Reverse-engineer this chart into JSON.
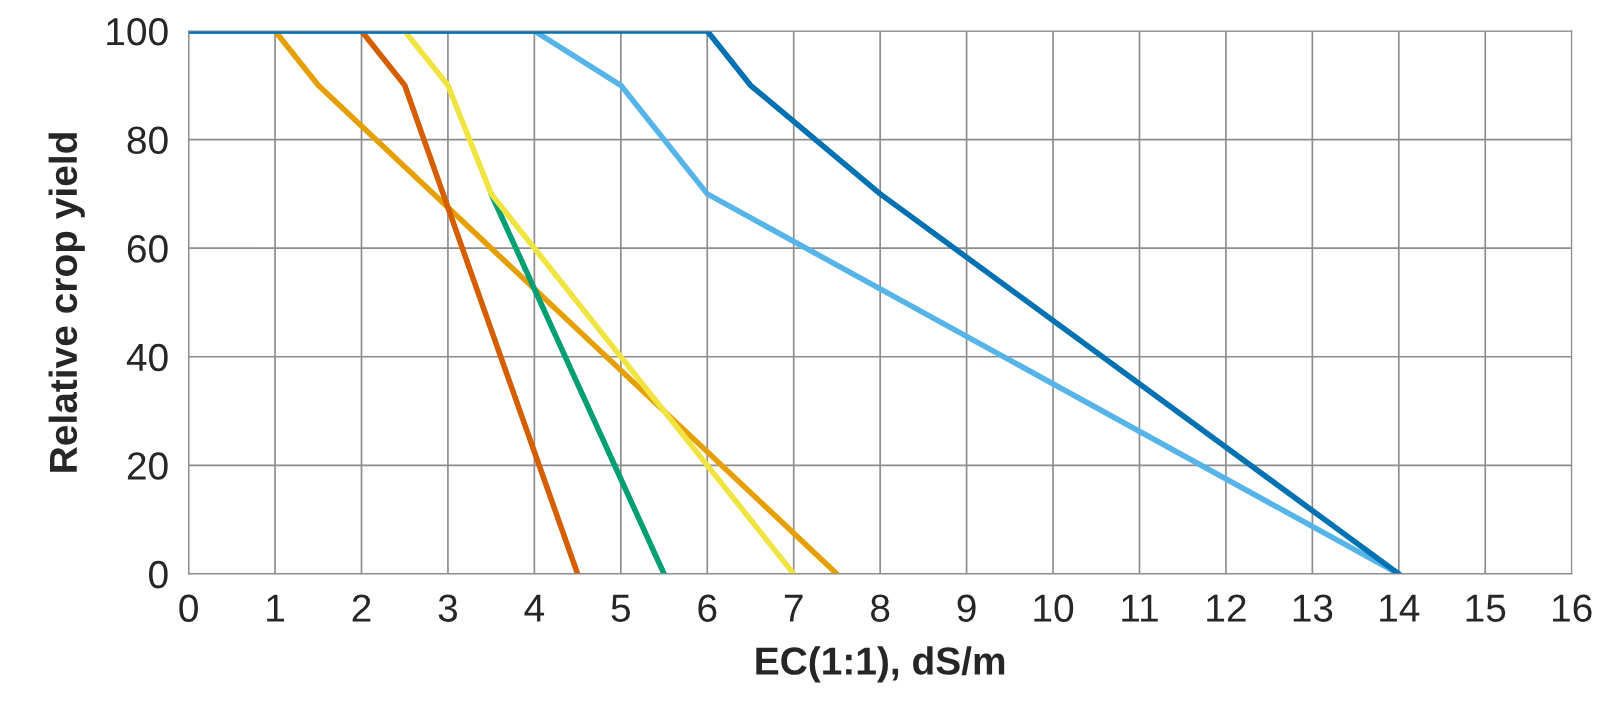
{
  "chart_data": {
    "type": "line",
    "xlabel": "EC(1:1), dS/m",
    "ylabel": "Relative crop yield",
    "xlim": [
      0,
      16
    ],
    "xticks": [
      0,
      1,
      2,
      3,
      4,
      5,
      6,
      7,
      8,
      9,
      10,
      11,
      12,
      13,
      14,
      15,
      16
    ],
    "ylim": [
      0,
      100
    ],
    "yticks": [
      0,
      20,
      40,
      60,
      80,
      100
    ],
    "grid": true,
    "legend": false,
    "marker": "none",
    "line_style": "solid",
    "series": [
      {
        "color": "#e69f00",
        "x": [
          1,
          1.5,
          2.5,
          7.5
        ],
        "values": [
          100,
          90,
          75,
          0
        ]
      },
      {
        "color": "#d55e00",
        "x": [
          2,
          2.5,
          4.5
        ],
        "values": [
          100,
          90,
          0
        ]
      },
      {
        "color": "#009e73",
        "x": [
          3.5,
          5.5
        ],
        "values": [
          70,
          0
        ]
      },
      {
        "color": "#f0e442",
        "x": [
          2.5,
          3,
          3.5,
          4,
          7
        ],
        "values": [
          100,
          90,
          70,
          60,
          0
        ]
      },
      {
        "color": "#56b4e9",
        "x": [
          0,
          4,
          5,
          6,
          14
        ],
        "values": [
          100,
          100,
          90,
          70,
          0
        ]
      },
      {
        "color": "#0072b2",
        "x": [
          0,
          6,
          6.5,
          8,
          14
        ],
        "values": [
          100,
          100,
          90,
          70,
          0
        ]
      }
    ]
  }
}
